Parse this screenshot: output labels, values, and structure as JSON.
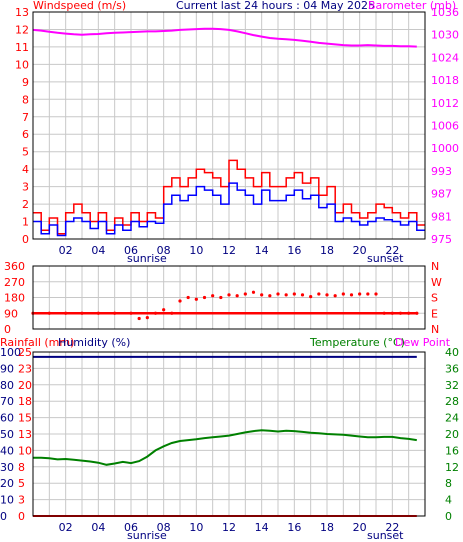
{
  "header": {
    "left_label": "Windspeed (m/s)",
    "center_label": "Current last 24 hours : 04 May 2025",
    "right_label": "Barometer (mb)"
  },
  "colors": {
    "wind_avg": "#0000ff",
    "wind_gust": "#ff0000",
    "barometer": "#ff00ff",
    "direction": "#ff0000",
    "rainfall": "#ff0000",
    "humidity": "#000080",
    "temperature": "#008000",
    "dewpoint": "#ff00ff",
    "daylight_grid": "#c8c8c8"
  },
  "x_axis": {
    "tick_labels": [
      "02",
      "04",
      "06",
      "08",
      "10",
      "12",
      "14",
      "16",
      "18",
      "20",
      "22"
    ],
    "sunrise_label": "sunrise",
    "sunset_label": "sunset"
  },
  "panel2": {
    "left_ticks": [
      "360",
      "270",
      "180",
      "90",
      "0"
    ],
    "right_ticks": [
      "N",
      "W",
      "S",
      "E",
      "N"
    ]
  },
  "panel3": {
    "rain_label": "Rainfall (mm)",
    "humidity_label": "Humidity (%)",
    "temp_label": "Temperature (°C)",
    "dew_label": "Dew Point"
  },
  "chart_data": [
    {
      "type": "line",
      "panel": "wind_barometer",
      "x_hours": [
        0,
        0.5,
        1,
        1.5,
        2,
        2.5,
        3,
        3.5,
        4,
        4.5,
        5,
        5.5,
        6,
        6.5,
        7,
        7.5,
        8,
        8.5,
        9,
        9.5,
        10,
        10.5,
        11,
        11.5,
        12,
        12.5,
        13,
        13.5,
        14,
        14.5,
        15,
        15.5,
        16,
        16.5,
        17,
        17.5,
        18,
        18.5,
        19,
        19.5,
        20,
        20.5,
        21,
        21.5,
        22,
        22.5,
        23,
        23.5
      ],
      "left_ticks": [
        "0",
        "1",
        "2",
        "3",
        "4",
        "5",
        "6",
        "7",
        "8",
        "9",
        "10",
        "11",
        "12",
        "13"
      ],
      "right_ticks": [
        "975",
        "981",
        "987",
        "993",
        "1000",
        "1006",
        "1012",
        "1018",
        "1024",
        "1030",
        "1036"
      ],
      "left_range": [
        0,
        13
      ],
      "right_range": [
        975,
        1036
      ],
      "series": [
        {
          "key": "gust",
          "values": [
            1.5,
            0.5,
            1.2,
            0.3,
            1.5,
            2,
            1.5,
            1,
            1.5,
            0.5,
            1.2,
            0.8,
            1.5,
            1,
            1.5,
            1.2,
            3,
            3.5,
            3,
            3.5,
            4,
            3.8,
            3.5,
            3,
            4.5,
            4,
            3.5,
            3,
            3.8,
            3,
            3,
            3.5,
            3.8,
            3.2,
            3.5,
            2.5,
            3,
            1.5,
            2,
            1.5,
            1.2,
            1.5,
            2,
            1.8,
            1.5,
            1.2,
            1.5,
            0.8
          ]
        },
        {
          "key": "avg",
          "values": [
            1.0,
            0.3,
            0.8,
            0.2,
            1.0,
            1.2,
            1.0,
            0.6,
            1.0,
            0.3,
            0.8,
            0.5,
            1.0,
            0.7,
            1.0,
            0.9,
            2.0,
            2.5,
            2.2,
            2.5,
            3.0,
            2.8,
            2.5,
            2.0,
            3.2,
            2.8,
            2.5,
            2.0,
            2.8,
            2.2,
            2.2,
            2.5,
            2.8,
            2.3,
            2.5,
            1.8,
            2.0,
            1.0,
            1.2,
            1.0,
            0.8,
            1.0,
            1.2,
            1.1,
            1.0,
            0.8,
            1.0,
            0.5
          ]
        },
        {
          "key": "barometer",
          "values": [
            1031.2,
            1031.0,
            1030.7,
            1030.4,
            1030.2,
            1030.0,
            1029.9,
            1030.0,
            1030.1,
            1030.3,
            1030.4,
            1030.5,
            1030.6,
            1030.7,
            1030.8,
            1030.8,
            1030.9,
            1031.0,
            1031.2,
            1031.3,
            1031.4,
            1031.5,
            1031.5,
            1031.4,
            1031.2,
            1030.8,
            1030.3,
            1029.8,
            1029.4,
            1029.0,
            1028.8,
            1028.7,
            1028.5,
            1028.3,
            1028.0,
            1027.7,
            1027.5,
            1027.3,
            1027.1,
            1027.0,
            1027.0,
            1027.1,
            1027.0,
            1026.9,
            1026.9,
            1026.8,
            1026.8,
            1026.7
          ]
        }
      ]
    },
    {
      "type": "scatter",
      "panel": "wind_direction",
      "x_hours": [
        0,
        1,
        2,
        3,
        4,
        5,
        6,
        6.5,
        7,
        7.5,
        8,
        8.5,
        9,
        9.5,
        10,
        10.5,
        11,
        11.5,
        12,
        12.5,
        13,
        13.5,
        14,
        14.5,
        15,
        15.5,
        16,
        16.5,
        17,
        17.5,
        18,
        18.5,
        19,
        19.5,
        20,
        20.5,
        21,
        21.5,
        22,
        22.5,
        23,
        23.5
      ],
      "y_range": [
        0,
        360
      ],
      "values": [
        90,
        90,
        90,
        90,
        90,
        90,
        90,
        60,
        65,
        90,
        110,
        90,
        160,
        180,
        170,
        180,
        190,
        180,
        195,
        190,
        200,
        210,
        195,
        190,
        200,
        195,
        200,
        195,
        185,
        200,
        195,
        190,
        200,
        195,
        200,
        200,
        200,
        90,
        90,
        90,
        90,
        90
      ]
    },
    {
      "type": "line",
      "panel": "temp_humidity",
      "x_hours": [
        0,
        0.5,
        1,
        1.5,
        2,
        2.5,
        3,
        3.5,
        4,
        4.5,
        5,
        5.5,
        6,
        6.5,
        7,
        7.5,
        8,
        8.5,
        9,
        9.5,
        10,
        10.5,
        11,
        11.5,
        12,
        12.5,
        13,
        13.5,
        14,
        14.5,
        15,
        15.5,
        16,
        16.5,
        17,
        17.5,
        18,
        18.5,
        19,
        19.5,
        20,
        20.5,
        21,
        21.5,
        22,
        22.5,
        23,
        23.5
      ],
      "left_ticks": [
        "0",
        "10",
        "20",
        "30",
        "40",
        "50",
        "60",
        "70",
        "80",
        "90",
        "100"
      ],
      "left_rain_ticks": [
        "0",
        "3",
        "5",
        "8",
        "10",
        "13",
        "15",
        "18",
        "20",
        "23",
        "25"
      ],
      "right_ticks": [
        "0",
        "4",
        "8",
        "12",
        "16",
        "20",
        "24",
        "28",
        "32",
        "36",
        "40"
      ],
      "humidity_range": [
        0,
        100
      ],
      "temp_range": [
        0,
        40
      ],
      "series": [
        {
          "key": "humidity",
          "values": [
            97,
            97,
            97,
            97,
            97,
            97,
            97,
            97,
            97,
            97,
            97,
            97,
            97,
            97,
            97,
            97,
            97,
            97,
            97,
            97,
            97,
            97,
            97,
            97,
            97,
            97,
            97,
            97,
            97,
            97,
            97,
            97,
            97,
            97,
            97,
            97,
            97,
            97,
            97,
            97,
            97,
            97,
            97,
            97,
            97,
            97,
            97,
            97
          ]
        },
        {
          "key": "rainfall",
          "values": [
            0,
            0,
            0,
            0,
            0,
            0,
            0,
            0,
            0,
            0,
            0,
            0,
            0,
            0,
            0,
            0,
            0,
            0,
            0,
            0,
            0,
            0,
            0,
            0,
            0,
            0,
            0,
            0,
            0,
            0,
            0,
            0,
            0,
            0,
            0,
            0,
            0,
            0,
            0,
            0,
            0,
            0,
            0,
            0,
            0,
            0,
            0,
            0
          ]
        },
        {
          "key": "temperature",
          "values": [
            14.2,
            14.2,
            14.1,
            13.8,
            13.9,
            13.7,
            13.5,
            13.3,
            13.0,
            12.5,
            12.8,
            13.2,
            12.9,
            13.4,
            14.5,
            16.0,
            17.0,
            17.8,
            18.3,
            18.5,
            18.7,
            19.0,
            19.2,
            19.4,
            19.6,
            20.0,
            20.4,
            20.7,
            20.9,
            20.8,
            20.6,
            20.8,
            20.7,
            20.5,
            20.3,
            20.2,
            20.0,
            19.9,
            19.8,
            19.6,
            19.4,
            19.2,
            19.2,
            19.3,
            19.3,
            19.0,
            18.8,
            18.5
          ]
        }
      ]
    }
  ]
}
